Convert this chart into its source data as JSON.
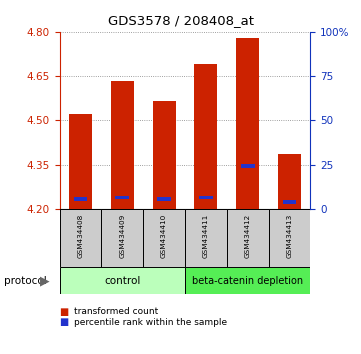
{
  "title": "GDS3578 / 208408_at",
  "samples": [
    "GSM434408",
    "GSM434409",
    "GSM434410",
    "GSM434411",
    "GSM434412",
    "GSM434413"
  ],
  "transformed_count": [
    4.52,
    4.635,
    4.565,
    4.69,
    4.78,
    4.385
  ],
  "percentile_rank_val": [
    4.228,
    4.232,
    4.228,
    4.232,
    4.338,
    4.218
  ],
  "blue_height": [
    0.013,
    0.013,
    0.013,
    0.013,
    0.013,
    0.013
  ],
  "ymin": 4.2,
  "ymax": 4.8,
  "yticks_left": [
    4.2,
    4.35,
    4.5,
    4.65,
    4.8
  ],
  "yticks_right_vals": [
    0,
    25,
    50,
    75,
    100
  ],
  "bar_color": "#cc2200",
  "blue_color": "#2233cc",
  "bar_width": 0.55,
  "control_color": "#bbffbb",
  "beta_color": "#55ee55",
  "gray_box_color": "#cccccc",
  "legend_items": [
    {
      "label": "transformed count",
      "color": "#cc2200"
    },
    {
      "label": "percentile rank within the sample",
      "color": "#2233cc"
    }
  ],
  "tick_color_left": "#cc2200",
  "tick_color_right": "#1133bb"
}
